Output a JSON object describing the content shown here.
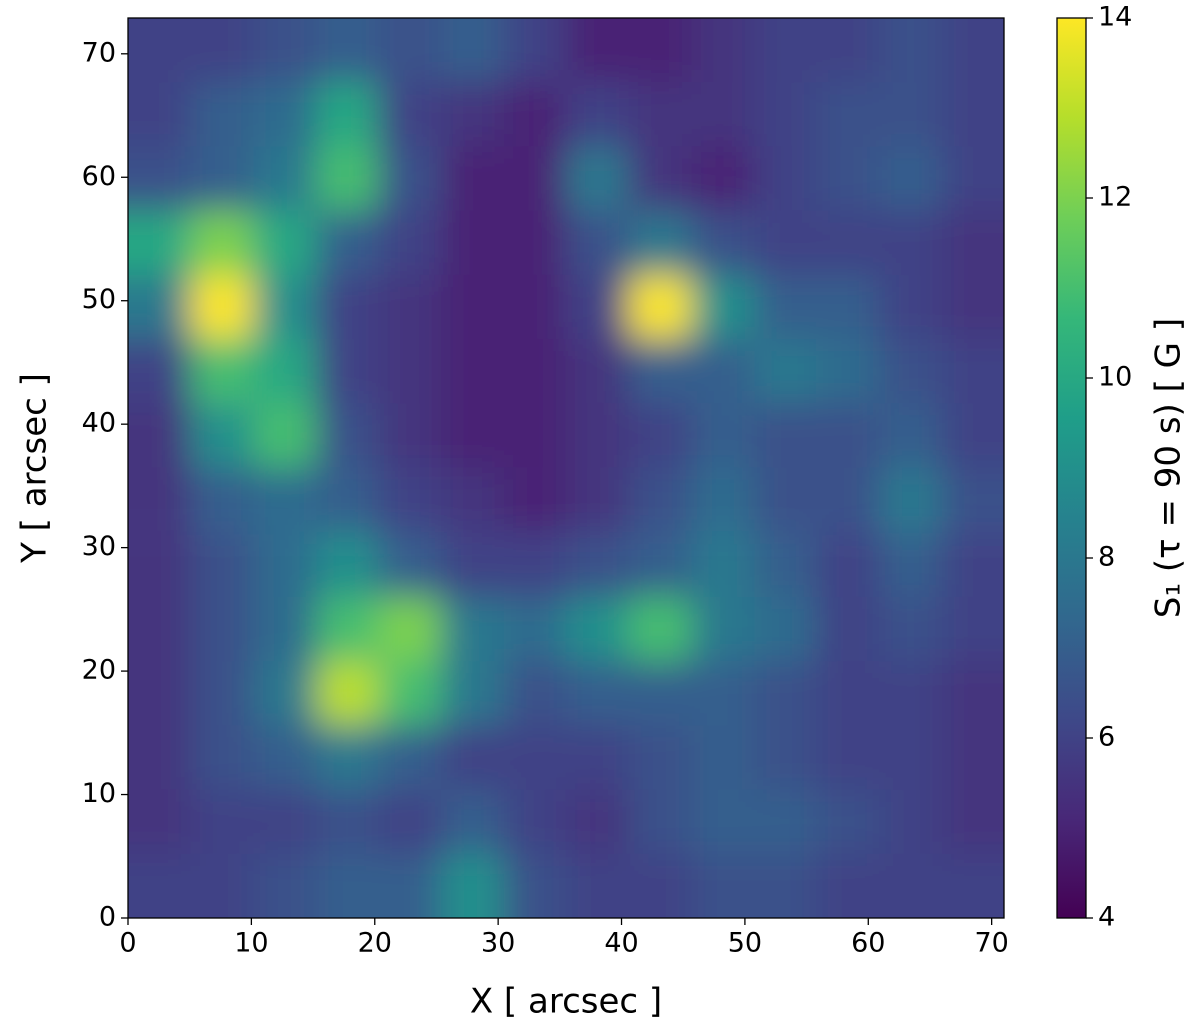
{
  "chart_data": {
    "type": "heatmap",
    "xlabel": "X [ arcsec ]",
    "ylabel": "Y [ arcsec ]",
    "colorbar_label": "S₁ (τ = 90 s) [ G ]",
    "colormap": "viridis",
    "xlim": [
      0,
      71
    ],
    "ylim": [
      0,
      72.9
    ],
    "xticks": [
      0,
      10,
      20,
      30,
      40,
      50,
      60,
      70
    ],
    "yticks": [
      0,
      10,
      20,
      30,
      40,
      50,
      60,
      70
    ],
    "clim": [
      4,
      14
    ],
    "cticks": [
      4,
      6,
      8,
      10,
      12,
      14
    ],
    "x": [
      2.5,
      7.6,
      12.7,
      17.8,
      22.8,
      27.9,
      33.0,
      38.0,
      43.1,
      48.2,
      53.3,
      58.3,
      63.4,
      68.5
    ],
    "y": [
      70.3,
      65.1,
      59.9,
      54.7,
      49.5,
      44.3,
      39.1,
      33.9,
      28.6,
      23.4,
      18.2,
      13.0,
      7.8,
      2.6
    ],
    "z": [
      [
        6,
        6,
        6.5,
        7,
        6.5,
        7,
        6,
        5,
        5,
        5.5,
        6,
        6,
        6.5,
        6
      ],
      [
        6,
        7,
        7.5,
        10,
        6,
        5.5,
        5,
        6,
        5.5,
        5.5,
        6,
        6.5,
        6.5,
        6
      ],
      [
        6.5,
        7,
        8,
        11,
        6.5,
        5,
        5,
        8,
        5.5,
        5,
        6,
        6.5,
        7,
        6
      ],
      [
        10,
        12,
        10,
        7,
        6,
        5,
        5,
        6.5,
        8,
        6.5,
        6,
        6,
        6,
        5.5
      ],
      [
        8,
        14,
        9,
        6,
        5.5,
        5,
        5,
        6,
        14,
        9,
        7,
        7,
        6,
        5.5
      ],
      [
        6,
        11,
        10,
        6,
        5.5,
        5,
        5,
        5.5,
        7,
        7,
        8,
        7.5,
        6.5,
        6
      ],
      [
        5.5,
        9,
        11,
        6.5,
        5.5,
        5,
        5,
        5.5,
        6,
        7,
        6.5,
        6.5,
        7,
        6
      ],
      [
        5.5,
        7,
        7.5,
        7,
        6,
        5.5,
        5,
        5.5,
        6.5,
        7.5,
        6.5,
        6.5,
        8,
        6.5
      ],
      [
        5.5,
        6.5,
        7.5,
        9,
        7,
        6,
        6,
        6.5,
        7,
        8,
        7,
        6,
        7,
        6
      ],
      [
        5.5,
        6.5,
        7.5,
        11,
        12,
        8,
        7.5,
        9,
        11,
        8,
        7.5,
        6,
        6.5,
        6
      ],
      [
        5.5,
        6.5,
        8,
        13,
        11,
        8,
        6.5,
        7,
        7,
        7,
        6.5,
        6,
        6,
        5.5
      ],
      [
        5.5,
        6.5,
        7,
        8,
        7,
        6,
        6,
        6,
        6.5,
        7,
        6.5,
        6,
        6,
        5.5
      ],
      [
        5.5,
        6,
        6,
        6.5,
        6,
        7,
        6,
        5.5,
        6.5,
        7,
        7,
        6.5,
        6,
        5.5
      ],
      [
        6,
        6,
        6.5,
        7,
        7,
        9,
        6.5,
        6,
        6,
        6.5,
        6.5,
        6,
        6,
        6
      ]
    ]
  }
}
